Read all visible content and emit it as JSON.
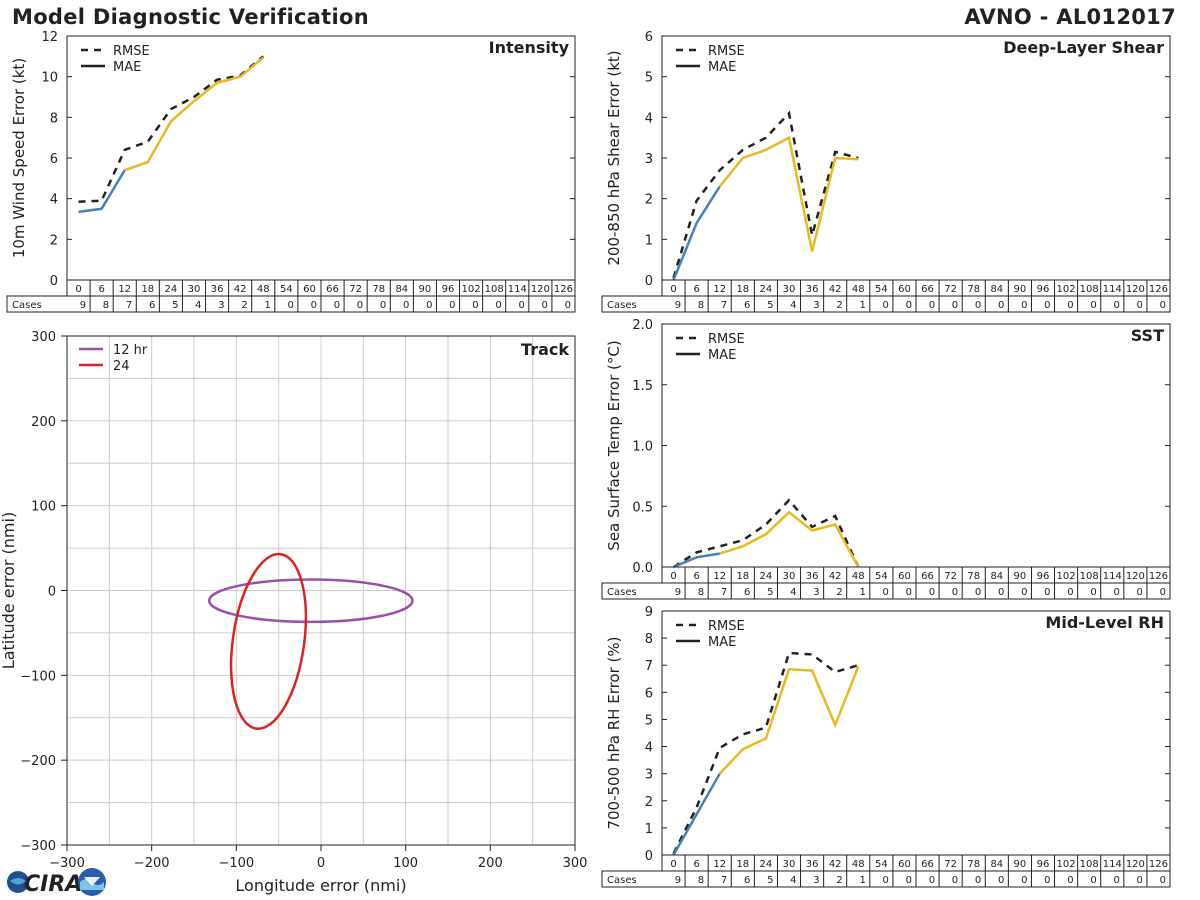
{
  "page": {
    "title": "Model Diagnostic Verification",
    "storm_id": "AVNO - AL012017",
    "logo_text": "CIRA"
  },
  "colors": {
    "early_segment": "#4682b4",
    "late_segment": "#e6b91e",
    "rmse_line": "#222222",
    "track_12hr": "#9b4fa8",
    "track_24": "#dd2222",
    "grid": "#cccccc"
  },
  "legend": {
    "rmse": "RMSE",
    "mae": "MAE"
  },
  "forecast_hours": [
    "0",
    "6",
    "12",
    "18",
    "24",
    "30",
    "36",
    "42",
    "48",
    "54",
    "60",
    "66",
    "72",
    "78",
    "84",
    "90",
    "96",
    "102",
    "108",
    "114",
    "120",
    "126"
  ],
  "cases_label": "Cases",
  "cases": [
    "9",
    "8",
    "7",
    "6",
    "5",
    "4",
    "3",
    "2",
    "1",
    "0",
    "0",
    "0",
    "0",
    "0",
    "0",
    "0",
    "0",
    "0",
    "0",
    "0",
    "0",
    "0"
  ],
  "chart_data": [
    {
      "id": "intensity",
      "type": "line",
      "title": "Intensity",
      "ylabel": "10m Wind Speed Error (kt)",
      "ylim": [
        0,
        12
      ],
      "yticks": [
        "0",
        "2",
        "4",
        "6",
        "8",
        "10",
        "12"
      ],
      "x": [
        0,
        6,
        12,
        18,
        24,
        30,
        36,
        42,
        48
      ],
      "series": [
        {
          "name": "RMSE",
          "style": "dashed",
          "values": [
            3.85,
            3.9,
            6.4,
            6.8,
            8.4,
            9.0,
            9.85,
            10.05,
            11.0
          ]
        },
        {
          "name": "MAE",
          "style": "solid",
          "values": [
            3.35,
            3.5,
            5.4,
            5.8,
            7.8,
            8.8,
            9.7,
            10.0,
            10.95
          ]
        }
      ]
    },
    {
      "id": "shear",
      "type": "line",
      "title": "Deep-Layer Shear",
      "ylabel": "200-850 hPa Shear Error (kt)",
      "ylim": [
        0,
        6
      ],
      "yticks": [
        "0",
        "1",
        "2",
        "3",
        "4",
        "5",
        "6"
      ],
      "x": [
        0,
        6,
        12,
        18,
        24,
        30,
        36,
        42,
        48
      ],
      "series": [
        {
          "name": "RMSE",
          "style": "dashed",
          "values": [
            0.05,
            1.95,
            2.7,
            3.2,
            3.5,
            4.1,
            1.1,
            3.15,
            3.0
          ]
        },
        {
          "name": "MAE",
          "style": "solid",
          "values": [
            0.0,
            1.4,
            2.3,
            3.0,
            3.2,
            3.5,
            0.7,
            3.0,
            2.97
          ]
        }
      ]
    },
    {
      "id": "sst",
      "type": "line",
      "title": "SST",
      "ylabel": "Sea Surface Temp Error (°C)",
      "ylim": [
        0,
        2.0
      ],
      "yticks": [
        "0.0",
        "0.5",
        "1.0",
        "1.5",
        "2.0"
      ],
      "x": [
        0,
        6,
        12,
        18,
        24,
        30,
        36,
        42,
        48
      ],
      "series": [
        {
          "name": "RMSE",
          "style": "dashed",
          "values": [
            0.0,
            0.12,
            0.17,
            0.22,
            0.35,
            0.55,
            0.33,
            0.42,
            0.0
          ]
        },
        {
          "name": "MAE",
          "style": "solid",
          "values": [
            0.0,
            0.08,
            0.11,
            0.17,
            0.27,
            0.45,
            0.3,
            0.35,
            0.0
          ]
        }
      ]
    },
    {
      "id": "rh",
      "type": "line",
      "title": "Mid-Level RH",
      "ylabel": "700-500 hPa RH Error (%)",
      "ylim": [
        0,
        9
      ],
      "yticks": [
        "0",
        "1",
        "2",
        "3",
        "4",
        "5",
        "6",
        "7",
        "8",
        "9"
      ],
      "x": [
        0,
        6,
        12,
        18,
        24,
        30,
        36,
        42,
        48
      ],
      "series": [
        {
          "name": "RMSE",
          "style": "dashed",
          "values": [
            0.05,
            1.75,
            3.95,
            4.45,
            4.7,
            7.45,
            7.4,
            6.75,
            7.0
          ]
        },
        {
          "name": "MAE",
          "style": "solid",
          "values": [
            0.0,
            1.5,
            3.0,
            3.9,
            4.3,
            6.85,
            6.8,
            4.8,
            6.95
          ]
        }
      ]
    },
    {
      "id": "track",
      "type": "scatter",
      "title": "Track",
      "xlabel": "Longitude error (nmi)",
      "ylabel": "Latitude error (nmi)",
      "xlim": [
        -300,
        300
      ],
      "ylim": [
        -300,
        300
      ],
      "xticks": [
        "−300",
        "−200",
        "−100",
        "0",
        "100",
        "200",
        "300"
      ],
      "yticks": [
        "−300",
        "−200",
        "−100",
        "0",
        "100",
        "200",
        "300"
      ],
      "grid": true,
      "ellipses": [
        {
          "name": "12 hr",
          "cx": -12,
          "cy": -12,
          "rx": 120,
          "ry": 25,
          "angle": 0
        },
        {
          "name": "24",
          "cx": -62,
          "cy": -60,
          "rx": 104,
          "ry": 42,
          "angle": -82
        }
      ]
    }
  ]
}
